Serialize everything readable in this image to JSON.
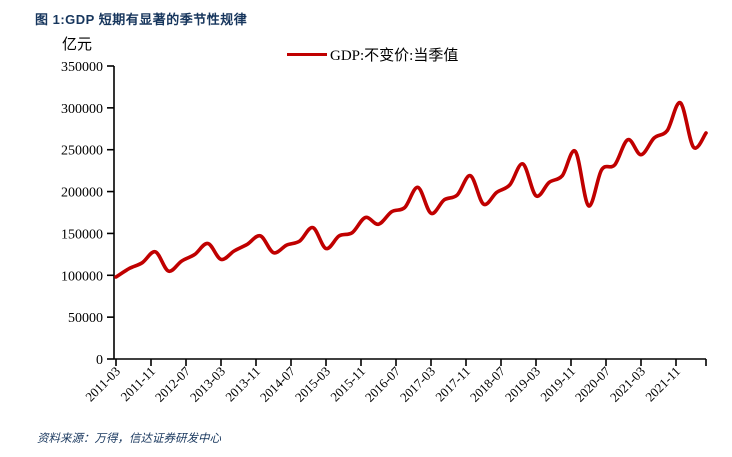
{
  "figure": {
    "title": "图 1:GDP 短期有显著的季节性规律",
    "source": "资料来源：万得，信达证券研发中心"
  },
  "colors": {
    "line_red": "#C00000",
    "title_navy": "#17365D",
    "axis_black": "#000000"
  },
  "chart_data": {
    "type": "line",
    "title": "图 1:GDP 短期有显著的季节性规律",
    "unit_label": "亿元",
    "legend": [
      "GDP:不变价:当季值"
    ],
    "legend_position": "top-center",
    "grid": false,
    "smoothed": true,
    "line_color": "#C00000",
    "ylim": [
      0,
      350000
    ],
    "y_ticks": [
      0,
      50000,
      100000,
      150000,
      200000,
      250000,
      300000,
      350000
    ],
    "x_tick_rotation": -45,
    "x_tick_labels": [
      "2011-03",
      "2011-11",
      "2012-07",
      "2013-03",
      "2013-11",
      "2014-07",
      "2015-03",
      "2015-11",
      "2016-07",
      "2017-03",
      "2017-11",
      "2018-07",
      "2019-03",
      "2019-11",
      "2020-07",
      "2021-03",
      "2021-11"
    ],
    "x": [
      "2011-03",
      "2011-06",
      "2011-09",
      "2011-12",
      "2012-03",
      "2012-06",
      "2012-09",
      "2012-12",
      "2013-03",
      "2013-06",
      "2013-09",
      "2013-12",
      "2014-03",
      "2014-06",
      "2014-09",
      "2014-12",
      "2015-03",
      "2015-06",
      "2015-09",
      "2015-12",
      "2016-03",
      "2016-06",
      "2016-09",
      "2016-12",
      "2017-03",
      "2017-06",
      "2017-09",
      "2017-12",
      "2018-03",
      "2018-06",
      "2018-09",
      "2018-12",
      "2019-03",
      "2019-06",
      "2019-09",
      "2019-12",
      "2020-03",
      "2020-06",
      "2020-09",
      "2020-12",
      "2021-03",
      "2021-06",
      "2021-09",
      "2021-12",
      "2022-03",
      "2022-06"
    ],
    "series": [
      {
        "name": "GDP:不变价:当季值",
        "values": [
          98000,
          108000,
          115000,
          128000,
          105000,
          117000,
          125000,
          138000,
          119000,
          129000,
          137000,
          147000,
          127000,
          136000,
          141000,
          157000,
          132000,
          147000,
          151000,
          169000,
          161000,
          176000,
          181000,
          205000,
          174000,
          190000,
          196000,
          219000,
          185000,
          199000,
          208000,
          233000,
          195000,
          211000,
          219000,
          248000,
          183000,
          226000,
          232000,
          262000,
          244000,
          264000,
          273000,
          306000,
          253000,
          270000
        ]
      }
    ]
  }
}
